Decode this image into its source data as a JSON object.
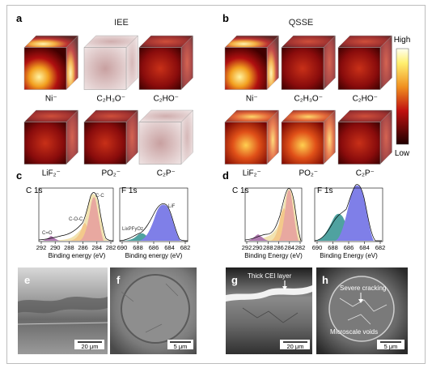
{
  "panels": {
    "a": {
      "label": "a",
      "group": "IEE",
      "ions": [
        "Ni⁻",
        "C₂H₃O⁻",
        "C₂HO⁻",
        "LiF₂⁻",
        "PO₂⁻",
        "C₂P⁻"
      ]
    },
    "b": {
      "label": "b",
      "group": "QSSE",
      "ions": [
        "Ni⁻",
        "C₂H₃O⁻",
        "C₂HO⁻",
        "LiF₂⁻",
        "PO₂⁻",
        "C₂P⁻"
      ]
    },
    "c": {
      "label": "c",
      "c1s_title": "C 1s",
      "f1s_title": "F 1s",
      "c1s_peaks": [
        "C-C",
        "C-O-C",
        "C=O"
      ],
      "f1s_peaks": [
        "LiF",
        "LixPFyOz"
      ],
      "c_ticks": [
        "292",
        "290",
        "288",
        "286",
        "284",
        "282"
      ],
      "f_ticks": [
        "690",
        "688",
        "686",
        "684",
        "682"
      ],
      "xlabel": "Binding energy (eV)"
    },
    "d": {
      "label": "d",
      "c1s_title": "C 1s",
      "f1s_title": "F 1s",
      "c_ticks": [
        "292",
        "290",
        "288",
        "286",
        "284",
        "282"
      ],
      "f_ticks": [
        "690",
        "688",
        "686",
        "684",
        "682"
      ],
      "xlabel": "Binding Energy (eV)"
    },
    "e": {
      "label": "e",
      "scale": "20 μm"
    },
    "f": {
      "label": "f",
      "scale": "5 μm"
    },
    "g": {
      "label": "g",
      "scale": "20 μm",
      "annotation": "Thick CEI layer"
    },
    "h": {
      "label": "h",
      "scale": "5 μm",
      "annotations": [
        "Severe cracking",
        "Microscale voids"
      ]
    }
  },
  "colorbar": {
    "high": "High",
    "low": "Low"
  },
  "colors": {
    "c_c": "#e8a8a0",
    "c_o_c": "#f3c98b",
    "c_eq_o": "#b07ab0",
    "lif": "#7f7fe8",
    "lixpfyoz": "#4fa2a0"
  }
}
